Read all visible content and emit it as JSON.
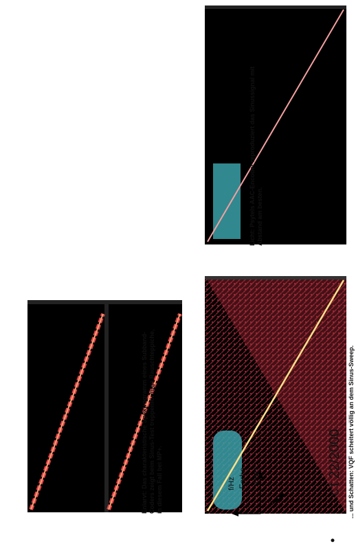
{
  "figures": {
    "subband": {
      "caption_lines": [
        "Enlarvt: Das charakteristische Spektrogramm eines Subband-",
        "Coders zeigt beim Sinus-Test treppenförmige Rauschteppiche,",
        "in diesem Fall bei MP+."
      ]
    },
    "aac": {
      "caption_lines": [
        "Licht: Psytels AAC-Encoder reproduziert das Sinussignal mit",
        "Abstand am besten."
      ]
    },
    "vqf": {
      "caption_lines": [
        "... und Schatten: VQF scheitert völlig an dem Sinus-Sweep."
      ]
    }
  },
  "legend": {
    "f_axis": "f/Hz",
    "color_label": "Farbe",
    "t_axis": "t/sec."
  },
  "footer": {
    "bullet": "•",
    "source": "c't 22/2000"
  },
  "colors": {
    "spectrogram_bg": "#000000",
    "sweep_line": "#f4a0a0",
    "sweep_glow": "#e0404a",
    "waveform": "#3aa0a8",
    "noise": "#b02c3c"
  }
}
